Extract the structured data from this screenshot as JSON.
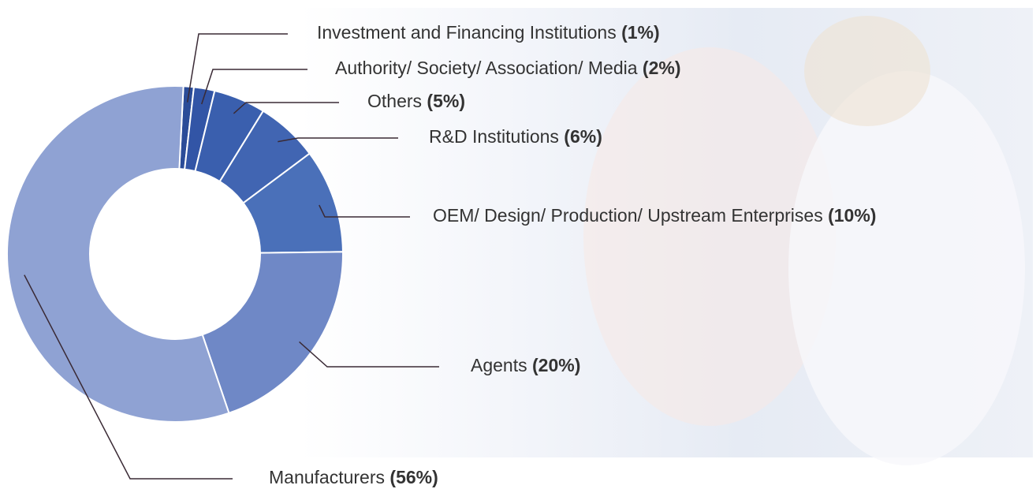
{
  "chart_data": {
    "type": "pie",
    "donut": true,
    "categories": [
      "Investment and Financing Institutions",
      "Authority/ Society/ Association/ Media",
      "Others",
      "R&D Institutions",
      "OEM/ Design/ Production/ Upstream Enterprises",
      "Agents",
      "Manufacturers"
    ],
    "values": [
      1,
      2,
      5,
      6,
      10,
      20,
      56
    ],
    "value_labels": [
      "(1%)",
      "(2%)",
      "(5%)",
      "(6%)",
      "(10%)",
      "(20%)",
      "(56%)"
    ],
    "colors": [
      "#2b4c98",
      "#3255a6",
      "#3a5fae",
      "#4165b2",
      "#4a70b9",
      "#6f88c6",
      "#8fa2d3"
    ]
  }
}
